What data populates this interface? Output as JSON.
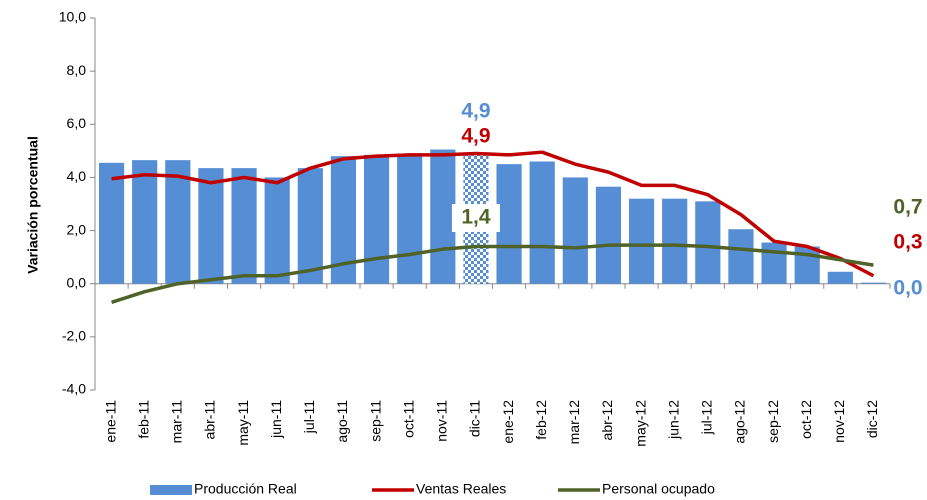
{
  "chart_data": {
    "type": "bar_line",
    "y_label": "Variación porcentual",
    "categories": [
      "ene-11",
      "feb-11",
      "mar-11",
      "abr-11",
      "may-11",
      "jun-11",
      "jul-11",
      "ago-11",
      "sep-11",
      "oct-11",
      "nov-11",
      "dic-11",
      "ene-12",
      "feb-12",
      "mar-12",
      "abr-12",
      "may-12",
      "jun-12",
      "jul-12",
      "ago-12",
      "sep-12",
      "oct-12",
      "nov-12",
      "dic-12"
    ],
    "series": [
      {
        "name": "Producción Real",
        "type": "bar",
        "color": "#558ed5",
        "hatched": [
          11
        ],
        "values": [
          4.55,
          4.65,
          4.65,
          4.35,
          4.35,
          4.0,
          4.35,
          4.8,
          4.85,
          4.9,
          5.05,
          4.9,
          4.5,
          4.6,
          4.0,
          3.65,
          3.2,
          3.2,
          3.1,
          2.05,
          1.55,
          1.4,
          0.45,
          0.04
        ],
        "value_labels": [
          null,
          null,
          null,
          null,
          null,
          null,
          null,
          null,
          null,
          null,
          null,
          "4,9",
          null,
          null,
          null,
          null,
          null,
          null,
          null,
          null,
          null,
          null,
          null,
          "0,0"
        ]
      },
      {
        "name": "Ventas Reales",
        "type": "line",
        "color": "#c00000",
        "values": [
          3.95,
          4.1,
          4.05,
          3.8,
          4.0,
          3.8,
          4.35,
          4.7,
          4.8,
          4.85,
          4.85,
          4.9,
          4.85,
          4.95,
          4.5,
          4.2,
          3.7,
          3.7,
          3.35,
          2.6,
          1.6,
          1.4,
          0.95,
          0.3
        ],
        "value_labels": [
          null,
          null,
          null,
          null,
          null,
          null,
          null,
          null,
          null,
          null,
          null,
          "4,9",
          null,
          null,
          null,
          null,
          null,
          null,
          null,
          null,
          null,
          null,
          null,
          "0,3"
        ]
      },
      {
        "name": "Personal ocupado",
        "type": "line",
        "color": "#4f6228",
        "values": [
          -0.7,
          -0.3,
          0.0,
          0.15,
          0.3,
          0.3,
          0.5,
          0.75,
          0.95,
          1.1,
          1.3,
          1.4,
          1.4,
          1.4,
          1.35,
          1.45,
          1.45,
          1.45,
          1.4,
          1.3,
          1.2,
          1.1,
          0.9,
          0.7
        ],
        "value_labels": [
          null,
          null,
          null,
          null,
          null,
          null,
          null,
          null,
          null,
          null,
          null,
          "1,4",
          null,
          null,
          null,
          null,
          null,
          null,
          null,
          null,
          null,
          null,
          null,
          "0,7"
        ]
      }
    ],
    "ylim": [
      -4,
      10
    ],
    "yticks": [
      {
        "value": -4,
        "label": "-4,0"
      },
      {
        "value": -2,
        "label": "-2,0"
      },
      {
        "value": 0,
        "label": "0,0"
      },
      {
        "value": 2,
        "label": "2,0"
      },
      {
        "value": 4,
        "label": "4,0"
      },
      {
        "value": 6,
        "label": "6,0"
      },
      {
        "value": 8,
        "label": "8,0"
      },
      {
        "value": 10,
        "label": "10,0"
      }
    ],
    "legend": "bottom"
  }
}
